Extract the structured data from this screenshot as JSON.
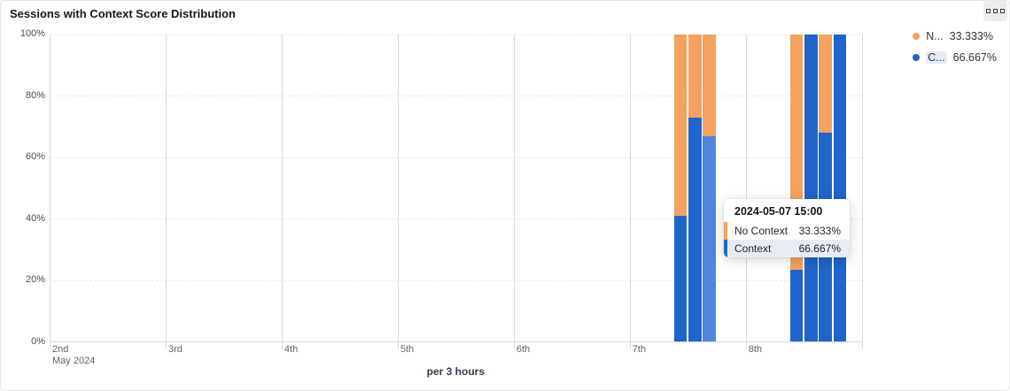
{
  "card": {
    "title": "Sessions with Context Score Distribution",
    "options_button": "chart-options"
  },
  "chart_data": {
    "type": "bar",
    "stacked": true,
    "unit": "percent",
    "title": "Sessions with Context Score Distribution",
    "xlabel": "per 3 hours",
    "ylabel": "",
    "ylim": [
      0,
      100
    ],
    "y_ticks": [
      "0%",
      "20%",
      "40%",
      "60%",
      "80%",
      "100%"
    ],
    "x_ticks": [
      {
        "label": "2nd",
        "sublabel": "May 2024"
      },
      {
        "label": "3rd",
        "sublabel": ""
      },
      {
        "label": "4th",
        "sublabel": ""
      },
      {
        "label": "5th",
        "sublabel": ""
      },
      {
        "label": "6th",
        "sublabel": ""
      },
      {
        "label": "7th",
        "sublabel": ""
      },
      {
        "label": "8th",
        "sublabel": ""
      },
      {
        "label": "",
        "sublabel": ""
      }
    ],
    "grid": {
      "horizontal": "dashed",
      "vertical": "solid"
    },
    "legend_position": "top-right",
    "series": [
      {
        "name": "No Context",
        "short_label": "N...",
        "legend_value": "33.333%",
        "color": "#F3A25F",
        "highlighted": false
      },
      {
        "name": "Context",
        "short_label": "C...",
        "legend_value": "66.667%",
        "color": "#2065C9",
        "highlight_color": "#5086DA",
        "highlighted": true
      }
    ],
    "bars": [
      {
        "date": "2024-05-07",
        "time": "09:00",
        "day_index": 5,
        "hour": 9,
        "context_pct": 41,
        "no_context_pct": 59,
        "hovered": false
      },
      {
        "date": "2024-05-07",
        "time": "12:00",
        "day_index": 5,
        "hour": 12,
        "context_pct": 72.7,
        "no_context_pct": 27.3,
        "hovered": false
      },
      {
        "date": "2024-05-07",
        "time": "15:00",
        "day_index": 5,
        "hour": 15,
        "context_pct": 66.667,
        "no_context_pct": 33.333,
        "hovered": true
      },
      {
        "date": "2024-05-08",
        "time": "09:00",
        "day_index": 6,
        "hour": 9,
        "context_pct": 23.3,
        "no_context_pct": 76.7,
        "hovered": false
      },
      {
        "date": "2024-05-08",
        "time": "12:00",
        "day_index": 6,
        "hour": 12,
        "context_pct": 100,
        "no_context_pct": 0,
        "hovered": false
      },
      {
        "date": "2024-05-08",
        "time": "15:00",
        "day_index": 6,
        "hour": 15,
        "context_pct": 68,
        "no_context_pct": 32,
        "hovered": false
      },
      {
        "date": "2024-05-08",
        "time": "18:00",
        "day_index": 6,
        "hour": 18,
        "context_pct": 100,
        "no_context_pct": 0,
        "hovered": false
      }
    ]
  },
  "tooltip": {
    "header": "2024-05-07 15:00",
    "rows": [
      {
        "label": "No Context",
        "value": "33.333%",
        "color": "#F3A25F",
        "highlighted": false
      },
      {
        "label": "Context",
        "value": "66.667%",
        "color": "#2065C9",
        "highlighted": true
      }
    ]
  },
  "colors": {
    "no_context": "#F3A25F",
    "context": "#2065C9",
    "context_hover": "#5086DA",
    "grid_dashed": "#e9eaec",
    "grid_vertical": "#d7d8db",
    "axis_line": "#d9dadd"
  }
}
